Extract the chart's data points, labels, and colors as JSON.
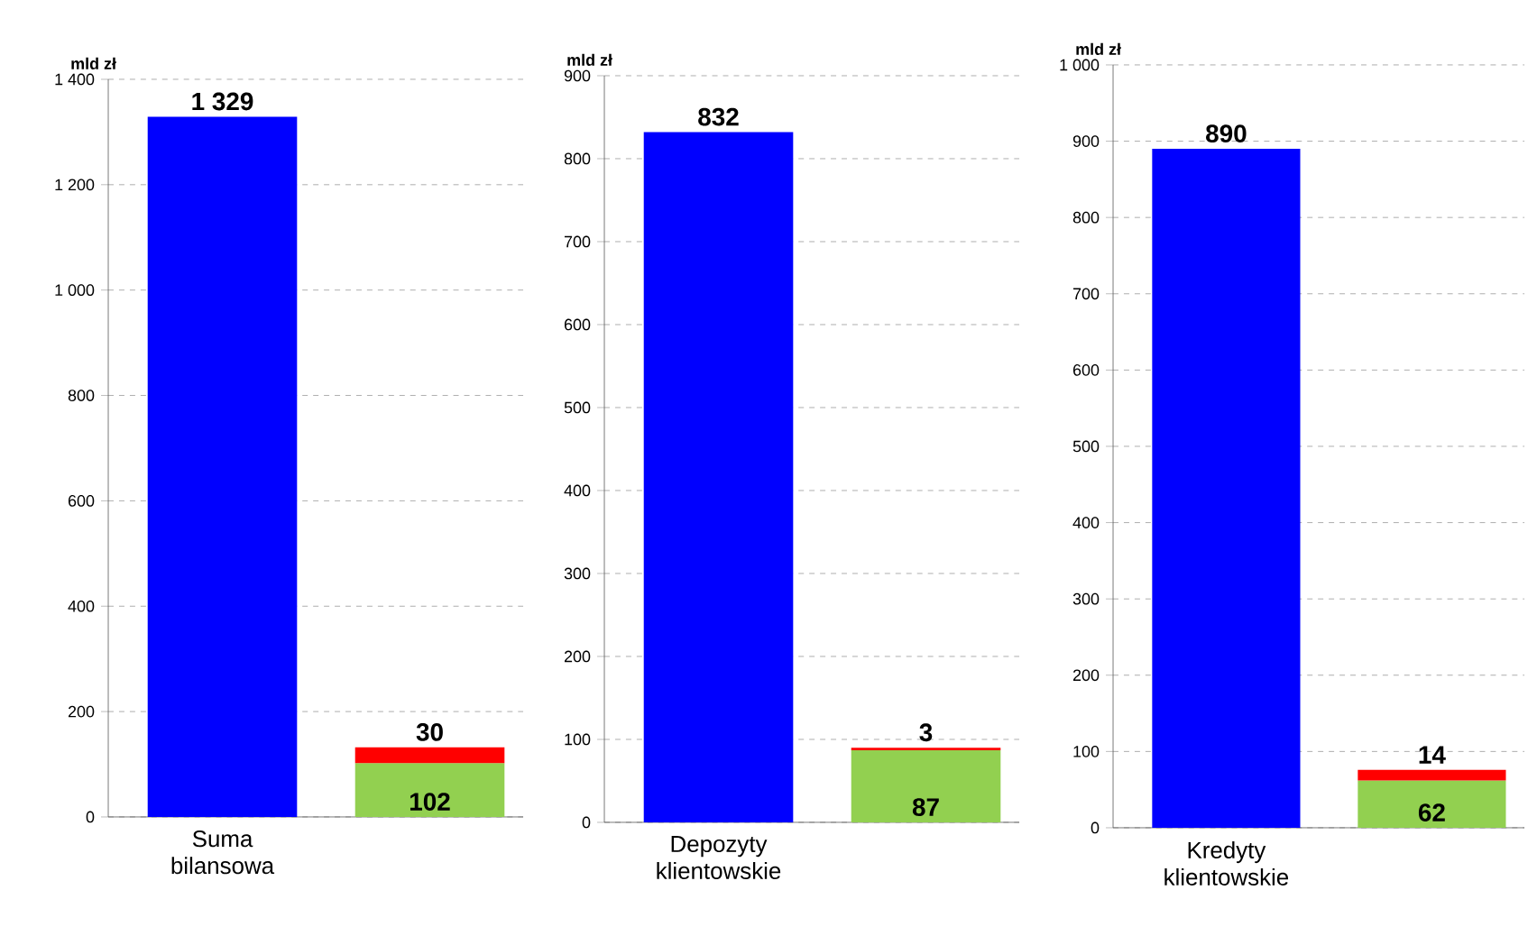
{
  "chart_data": [
    {
      "type": "bar",
      "stacked": true,
      "ylabel": "mld zł",
      "categories": [
        "Suma bilansowa",
        null
      ],
      "ylim": [
        0,
        1400
      ],
      "yticks": [
        0,
        200,
        400,
        600,
        800,
        {
          "value": 1000,
          "label": "1 000"
        },
        {
          "value": 1200,
          "label": "1 200"
        },
        {
          "value": 1400,
          "label": "1 400"
        }
      ],
      "grid": "y",
      "series": [
        {
          "color": "#0000ff",
          "values": [
            1329,
            null
          ],
          "value_labels": [
            "1 329",
            null
          ]
        },
        {
          "color": "#92d050",
          "values": [
            null,
            102
          ],
          "value_labels": [
            null,
            "102"
          ]
        },
        {
          "color": "#ff0000",
          "values": [
            null,
            30
          ],
          "value_labels": [
            null,
            "30"
          ]
        }
      ]
    },
    {
      "type": "bar",
      "stacked": true,
      "ylabel": "mld zł",
      "categories": [
        "Depozyty klientowskie",
        null
      ],
      "ylim": [
        0,
        900
      ],
      "yticks": [
        0,
        100,
        200,
        300,
        400,
        500,
        600,
        700,
        800,
        900
      ],
      "grid": "y",
      "series": [
        {
          "color": "#0000ff",
          "values": [
            832,
            null
          ],
          "value_labels": [
            "832",
            null
          ]
        },
        {
          "color": "#92d050",
          "values": [
            null,
            87
          ],
          "value_labels": [
            null,
            "87"
          ]
        },
        {
          "color": "#ff0000",
          "values": [
            null,
            3
          ],
          "value_labels": [
            null,
            "3"
          ]
        }
      ]
    },
    {
      "type": "bar",
      "stacked": true,
      "ylabel": "mld zł",
      "categories": [
        "Kredyty klientowskie",
        null
      ],
      "ylim": [
        0,
        1000
      ],
      "yticks": [
        0,
        100,
        200,
        300,
        400,
        500,
        600,
        700,
        800,
        900,
        {
          "value": 1000,
          "label": "1 000"
        }
      ],
      "grid": "y",
      "series": [
        {
          "color": "#0000ff",
          "values": [
            890,
            null
          ],
          "value_labels": [
            "890",
            null
          ]
        },
        {
          "color": "#92d050",
          "values": [
            null,
            62
          ],
          "value_labels": [
            null,
            "62"
          ]
        },
        {
          "color": "#ff0000",
          "values": [
            null,
            14
          ],
          "value_labels": [
            null,
            "14"
          ]
        }
      ]
    }
  ]
}
